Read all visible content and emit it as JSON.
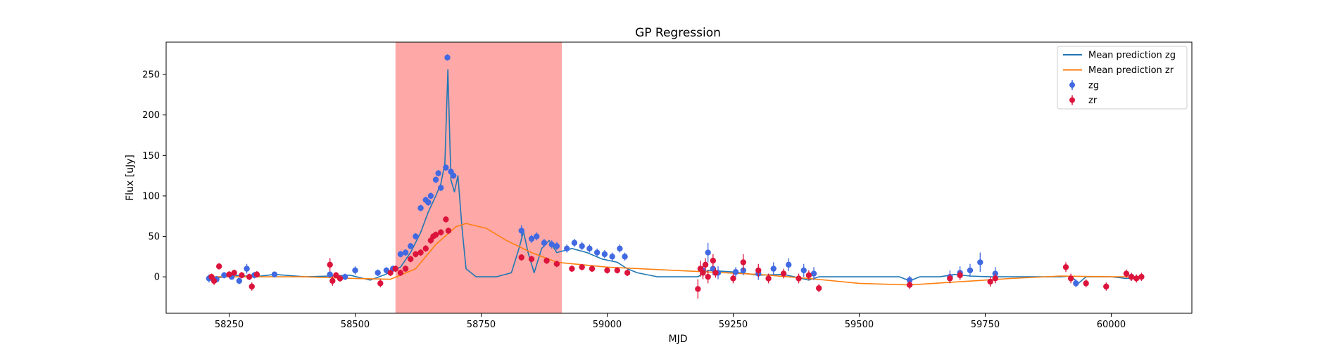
{
  "chart_data": {
    "type": "scatter",
    "title": "GP Regression",
    "xlabel": "MJD",
    "ylabel": "Flux [uJy]",
    "xlim": [
      58125,
      60160
    ],
    "ylim": [
      -45,
      290
    ],
    "xticks": [
      58250,
      58500,
      58750,
      59000,
      59250,
      59500,
      59750,
      60000
    ],
    "yticks": [
      0,
      50,
      100,
      150,
      200,
      250
    ],
    "grid": false,
    "legend_position": "top-right",
    "highlight_span": {
      "x0": 58580,
      "x1": 58910,
      "color": "#ffa8a8"
    },
    "legend": [
      {
        "label": "Mean prediction zg",
        "kind": "line",
        "color": "#1f77b4"
      },
      {
        "label": "Mean prediction zr",
        "kind": "line",
        "color": "#ff7f0e"
      },
      {
        "label": "zg",
        "kind": "errorbar",
        "color": "#4169e1"
      },
      {
        "label": "zr",
        "kind": "errorbar",
        "color": "#dc143c"
      }
    ],
    "series": [
      {
        "name": "Mean prediction zg",
        "kind": "line",
        "color": "#1f77b4",
        "x": [
          58220,
          58260,
          58300,
          58340,
          58400,
          58450,
          58490,
          58530,
          58560,
          58590,
          58610,
          58630,
          58645,
          58660,
          58670,
          58678,
          58684,
          58690,
          58697,
          58704,
          58712,
          58720,
          58740,
          58780,
          58810,
          58825,
          58834,
          58843,
          58855,
          58870,
          58885,
          58900,
          58930,
          58960,
          58990,
          59020,
          59040,
          59060,
          59100,
          59180,
          59200,
          59250,
          59300,
          59350,
          59400,
          59420,
          59450,
          59500,
          59580,
          59600,
          59620,
          59660,
          59690,
          59720,
          59760,
          59800,
          59900,
          59920,
          59935,
          59950,
          59970,
          60000,
          60030,
          60060
        ],
        "y": [
          -2,
          2,
          0,
          3,
          0,
          1,
          2,
          -4,
          3,
          12,
          30,
          55,
          80,
          100,
          115,
          140,
          256,
          120,
          105,
          125,
          60,
          10,
          0,
          0,
          5,
          35,
          56,
          30,
          5,
          35,
          45,
          30,
          35,
          30,
          22,
          18,
          10,
          5,
          0,
          0,
          8,
          6,
          2,
          3,
          -4,
          0,
          0,
          0,
          0,
          -5,
          0,
          0,
          3,
          1,
          0,
          0,
          0,
          1,
          -8,
          0,
          0,
          0,
          -2,
          0
        ]
      },
      {
        "name": "Mean prediction zr",
        "kind": "line",
        "color": "#ff7f0e",
        "x": [
          58220,
          58300,
          58400,
          58500,
          58570,
          58620,
          58660,
          58700,
          58720,
          58760,
          58800,
          58850,
          58900,
          59000,
          59100,
          59200,
          59300,
          59400,
          59500,
          59600,
          59700,
          59800,
          59900,
          60000,
          60060
        ],
        "y": [
          0,
          0,
          0,
          -2,
          -3,
          10,
          40,
          62,
          66,
          60,
          45,
          30,
          18,
          12,
          9,
          6,
          3,
          -2,
          -8,
          -10,
          -6,
          -2,
          1,
          0,
          0
        ]
      },
      {
        "name": "zg",
        "kind": "errorbar",
        "color": "#4169e1",
        "x": [
          58210,
          58225,
          58240,
          58255,
          58270,
          58285,
          58300,
          58340,
          58450,
          58480,
          58500,
          58545,
          58562,
          58575,
          58590,
          58600,
          58610,
          58620,
          58630,
          58640,
          58645,
          58650,
          58660,
          58665,
          58670,
          58680,
          58683,
          58690,
          58695,
          58830,
          58850,
          58860,
          58875,
          58890,
          58900,
          58920,
          58935,
          58950,
          58965,
          58980,
          58995,
          59010,
          59025,
          59035,
          59190,
          59200,
          59210,
          59220,
          59255,
          59270,
          59300,
          59330,
          59360,
          59390,
          59410,
          59600,
          59680,
          59700,
          59720,
          59740,
          59770,
          59930,
          60040
        ],
        "y": [
          -2,
          -3,
          2,
          0,
          -5,
          10,
          2,
          3,
          3,
          0,
          8,
          5,
          8,
          10,
          28,
          30,
          38,
          50,
          85,
          95,
          92,
          100,
          120,
          128,
          110,
          135,
          271,
          130,
          125,
          57,
          47,
          50,
          42,
          40,
          38,
          35,
          42,
          38,
          35,
          30,
          28,
          25,
          35,
          25,
          8,
          30,
          10,
          5,
          6,
          8,
          4,
          10,
          15,
          8,
          4,
          -4,
          0,
          5,
          8,
          18,
          4,
          -8,
          0
        ],
        "err": [
          5,
          4,
          4,
          3,
          4,
          6,
          4,
          3,
          4,
          4,
          5,
          4,
          4,
          4,
          4,
          4,
          4,
          4,
          4,
          4,
          4,
          4,
          4,
          4,
          4,
          4,
          4,
          4,
          4,
          7,
          5,
          5,
          5,
          5,
          5,
          5,
          5,
          5,
          5,
          5,
          5,
          5,
          5,
          5,
          8,
          12,
          8,
          8,
          6,
          6,
          8,
          8,
          8,
          8,
          8,
          5,
          8,
          8,
          8,
          12,
          8,
          5,
          5
        ]
      },
      {
        "name": "zr",
        "kind": "errorbar",
        "color": "#dc143c",
        "x": [
          58215,
          58220,
          58230,
          58250,
          58260,
          58275,
          58290,
          58295,
          58305,
          58450,
          58455,
          58462,
          58470,
          58550,
          58570,
          58580,
          58590,
          58600,
          58610,
          58620,
          58630,
          58640,
          58650,
          58655,
          58660,
          58670,
          58680,
          58685,
          58830,
          58850,
          58880,
          58900,
          58930,
          58950,
          58970,
          59000,
          59020,
          59040,
          59180,
          59185,
          59190,
          59195,
          59200,
          59210,
          59215,
          59250,
          59270,
          59300,
          59320,
          59350,
          59380,
          59400,
          59420,
          59600,
          59680,
          59700,
          59760,
          59770,
          59910,
          59920,
          59950,
          59990,
          60030,
          60040,
          60050,
          60060
        ],
        "y": [
          0,
          -5,
          13,
          3,
          5,
          2,
          0,
          -12,
          3,
          15,
          -5,
          2,
          -2,
          -8,
          5,
          10,
          5,
          10,
          22,
          28,
          30,
          35,
          45,
          50,
          52,
          55,
          71,
          57,
          24,
          22,
          20,
          16,
          10,
          12,
          10,
          8,
          8,
          5,
          -15,
          10,
          5,
          15,
          0,
          20,
          5,
          -2,
          18,
          8,
          -2,
          4,
          -2,
          2,
          -14,
          -10,
          -2,
          2,
          -6,
          -2,
          12,
          -2,
          -8,
          -12,
          4,
          0,
          -2,
          0
        ],
        "err": [
          4,
          5,
          4,
          4,
          4,
          4,
          4,
          5,
          4,
          8,
          6,
          4,
          4,
          5,
          4,
          4,
          4,
          4,
          4,
          4,
          4,
          4,
          4,
          4,
          4,
          4,
          4,
          4,
          4,
          4,
          4,
          4,
          4,
          4,
          4,
          4,
          4,
          4,
          12,
          10,
          8,
          8,
          8,
          8,
          6,
          6,
          10,
          8,
          6,
          6,
          6,
          6,
          5,
          5,
          6,
          6,
          6,
          6,
          6,
          6,
          5,
          5,
          5,
          5,
          5,
          5
        ]
      }
    ]
  }
}
